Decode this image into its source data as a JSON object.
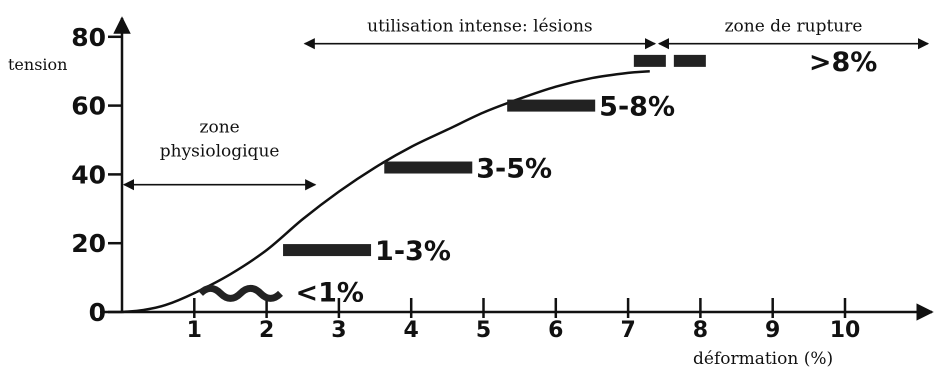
{
  "chart_data": {
    "type": "line",
    "ylabel": "tension",
    "xlabel": "déformation (%)",
    "y_ticks": [
      "0",
      "20",
      "40",
      "60",
      "80"
    ],
    "x_ticks": [
      "1",
      "2",
      "3",
      "4",
      "5",
      "6",
      "7",
      "8",
      "9",
      "10"
    ],
    "xlim": [
      0,
      11
    ],
    "ylim": [
      0,
      80
    ],
    "series": [
      {
        "x": [
          0,
          0.3,
          0.6,
          1,
          1.5,
          2,
          2.5,
          3,
          3.5,
          4,
          4.5,
          5,
          5.5,
          6,
          6.5,
          7,
          7.3
        ],
        "y": [
          0,
          0.6,
          2,
          5.5,
          11,
          18,
          27,
          35,
          42,
          48,
          53,
          58,
          62,
          65.5,
          68,
          69.5,
          70
        ]
      }
    ],
    "zones": [
      {
        "label_line1": "zone",
        "label_line2": "physiologique",
        "x_start": 0,
        "x_end": 2.7,
        "y": 37
      },
      {
        "label_line1": "utilisation intense: lésions",
        "label_line2": "",
        "x_start": 2.5,
        "x_end": 7.4,
        "y": 78
      },
      {
        "label_line1": "zone de rupture",
        "label_line2": "",
        "x_start": 7.4,
        "x_end": 11.2,
        "y": 78
      }
    ],
    "annotations": [
      {
        "text": "<1%",
        "x": 2.4,
        "y": 6
      },
      {
        "text": "1-3%",
        "x": 3.5,
        "y": 18
      },
      {
        "text": "3-5%",
        "x": 4.9,
        "y": 42
      },
      {
        "text": "5-8%",
        "x": 6.6,
        "y": 60
      },
      {
        "text": ">8%",
        "x": 9.5,
        "y": 73
      }
    ]
  }
}
